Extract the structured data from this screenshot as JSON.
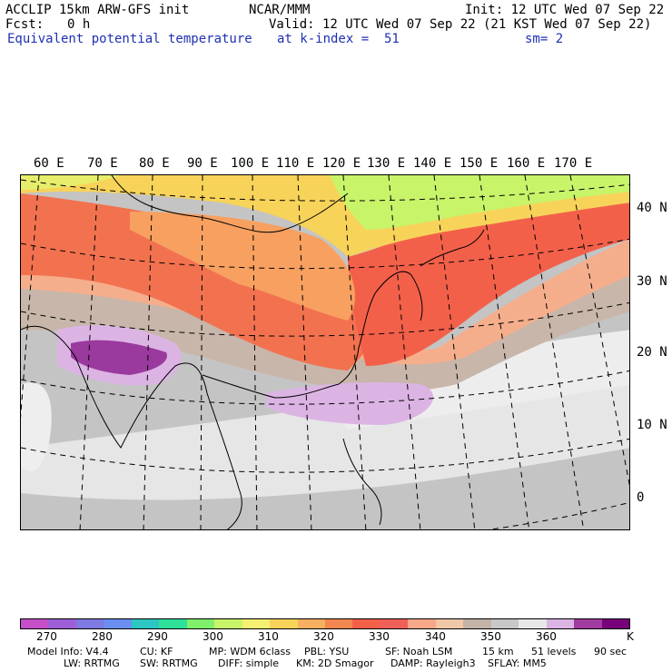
{
  "header": {
    "model": "ACCLIP 15km ARW-GFS init",
    "org": "NCAR/MMM",
    "init": "Init: 12 UTC Wed 07 Sep 22",
    "fcst_label": "Fcst:",
    "fcst_value": "0 h",
    "valid": "Valid: 12 UTC Wed 07 Sep 22 (21 KST Wed 07 Sep 22)",
    "field": "Equivalent potential temperature",
    "level": "at k-index =  51",
    "smoothing": "sm= 2"
  },
  "map": {
    "lon_labels": [
      "60 E",
      "70 E",
      "80 E",
      "90 E",
      "100 E",
      "110 E",
      "120 E",
      "130 E",
      "140 E",
      "150 E",
      "160 E",
      "170 E"
    ],
    "lat_labels": [
      "40 N",
      "30 N",
      "20 N",
      "10 N",
      "0"
    ]
  },
  "colorbar": {
    "colors": [
      "#c54fc8",
      "#9e5fd9",
      "#7f79e2",
      "#6a8ff0",
      "#2ec6c2",
      "#2ee09a",
      "#80f06a",
      "#c8f46a",
      "#f6f072",
      "#f7d35a",
      "#f6b060",
      "#f28750",
      "#f45f48",
      "#f0605a",
      "#f6a888",
      "#f0c8a8",
      "#c4b4a8",
      "#c8c8c8",
      "#e8e8e8",
      "#dcb4e4",
      "#a03ca0",
      "#78007a"
    ],
    "ticks": [
      "270",
      "280",
      "290",
      "300",
      "310",
      "320",
      "330",
      "340",
      "350",
      "360"
    ],
    "unit": "K"
  },
  "footer": {
    "line1": [
      "Model Info: V4.4",
      "CU: KF",
      "MP: WDM 6class",
      "PBL: YSU",
      "SF: Noah LSM",
      "15 km",
      "51 levels",
      "90 sec"
    ],
    "line2": [
      "LW: RRTMG",
      "SW: RRTMG",
      "DIFF: simple",
      "KM: 2D Smagor",
      "DAMP: Rayleigh3",
      "SFLAY: MM5"
    ]
  }
}
